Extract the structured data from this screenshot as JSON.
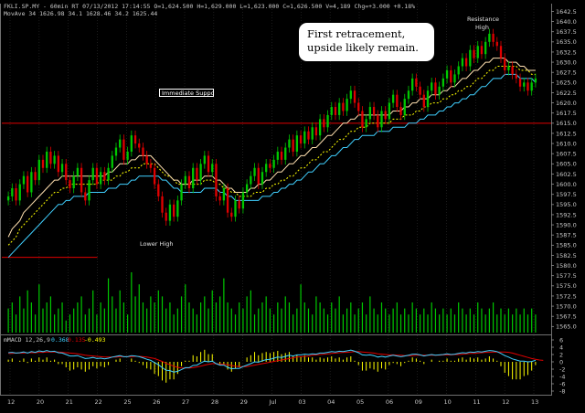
{
  "header": {
    "price_line": "FKLI.SP.MY - 60min RT  07/13/2012  17:14:55   O=1,624.500  H=1,629.000  L=1,623.000  C=1,626.500  V=4,189  Chg=+3.000  +0.18%",
    "ma_line": "MovAve 34   1626.98   34.1   1628.46   34.2   1625.44"
  },
  "macd_label": {
    "name": "mMACD 12,26,9",
    "v1": "0.368",
    "v2": "0.135",
    "v3": "-0.493"
  },
  "annotations": {
    "callout": "First retracement, upside likely remain.",
    "immediate_support": "Immediate Support",
    "lower_high": "Lower High",
    "resistance_line1": "Resistance",
    "resistance_line2": "High"
  },
  "colors": {
    "up_candle": "#00c800",
    "down_candle": "#e00000",
    "ema_fast": "#ffe0b0",
    "ema_mid": "#ffff00",
    "ema_slow": "#40d0ff",
    "support_line": "#e00000",
    "volume": "#00c800",
    "macd_line": "#40d0ff",
    "signal_line": "#e00000",
    "histogram": "#ffff00"
  },
  "chart_data": {
    "type": "candlestick",
    "timeframe": "60min",
    "x_ticks": [
      "12",
      "20",
      "21",
      "22",
      "25",
      "26",
      "27",
      "28",
      "29",
      "Jul",
      "03",
      "04",
      "05",
      "06",
      "09",
      "10",
      "11",
      "12",
      "13"
    ],
    "price_ticks": [
      "1642.5",
      "1640.0",
      "1637.5",
      "1635.0",
      "1632.5",
      "1630.0",
      "1627.5",
      "1625.0",
      "1622.5",
      "1620.0",
      "1617.5",
      "1615.0",
      "1612.5",
      "1610.0",
      "1607.5",
      "1605.0",
      "1602.5",
      "1600.0",
      "1597.5",
      "1595.0",
      "1592.5",
      "1590.0",
      "1587.5",
      "1585.0",
      "1582.5",
      "1580.0",
      "1577.5",
      "1575.0",
      "1572.5",
      "1570.0",
      "1567.5",
      "1565.0"
    ],
    "macd_ticks": [
      "6",
      "4",
      "2",
      "0",
      "-2",
      "-4",
      "-6",
      "-8"
    ],
    "price_ylim": [
      1563.5,
      1643.5
    ],
    "macd_ylim": [
      -8.5,
      6.5
    ],
    "horizontal_lines": [
      {
        "value": 1615.0,
        "from": "start",
        "to": "end"
      },
      {
        "value": 1582.0,
        "from": "start",
        "to": "22"
      }
    ],
    "close": [
      1597,
      1599,
      1596,
      1600,
      1602,
      1598,
      1603,
      1601,
      1606,
      1604,
      1608,
      1605,
      1607,
      1603,
      1605,
      1601,
      1599,
      1602,
      1604,
      1598,
      1596,
      1601,
      1604,
      1600,
      1603,
      1601,
      1604,
      1607,
      1609,
      1611,
      1606,
      1608,
      1612,
      1610,
      1609,
      1607,
      1605,
      1604,
      1600,
      1597,
      1593,
      1591,
      1595,
      1592,
      1596,
      1600,
      1602,
      1599,
      1604,
      1601,
      1605,
      1607,
      1603,
      1605,
      1597,
      1596,
      1599,
      1593,
      1592,
      1596,
      1594,
      1598,
      1600,
      1602,
      1604,
      1600,
      1603,
      1605,
      1604,
      1606,
      1608,
      1606,
      1609,
      1611,
      1608,
      1612,
      1610,
      1613,
      1611,
      1614,
      1612,
      1616,
      1614,
      1617,
      1619,
      1617,
      1620,
      1618,
      1621,
      1623,
      1620,
      1618,
      1614,
      1616,
      1619,
      1617,
      1614,
      1618,
      1616,
      1620,
      1622,
      1619,
      1617,
      1621,
      1623,
      1626,
      1624,
      1622,
      1619,
      1623,
      1625,
      1622,
      1624,
      1626,
      1628,
      1625,
      1627,
      1629,
      1631,
      1629,
      1633,
      1631,
      1634,
      1632,
      1635,
      1637,
      1635,
      1634,
      1631,
      1628,
      1629,
      1627,
      1626,
      1624,
      1625,
      1623,
      1625,
      1626
    ],
    "ema_fast": [
      1587,
      1589,
      1590,
      1591,
      1593,
      1594,
      1595,
      1596,
      1597,
      1598,
      1599,
      1600,
      1601,
      1601,
      1602,
      1602,
      1602,
      1602,
      1602,
      1602,
      1602,
      1602,
      1602,
      1602,
      1602,
      1602,
      1603,
      1603,
      1604,
      1605,
      1605,
      1605,
      1606,
      1606,
      1607,
      1607,
      1607,
      1607,
      1606,
      1605,
      1604,
      1603,
      1602,
      1601,
      1601,
      1600,
      1600,
      1600,
      1601,
      1601,
      1601,
      1602,
      1602,
      1602,
      1601,
      1601,
      1600,
      1599,
      1599,
      1598,
      1598,
      1598,
      1598,
      1599,
      1599,
      1600,
      1600,
      1601,
      1601,
      1602,
      1603,
      1603,
      1604,
      1605,
      1605,
      1606,
      1607,
      1607,
      1608,
      1609,
      1609,
      1610,
      1611,
      1612,
      1612,
      1613,
      1614,
      1615,
      1615,
      1616,
      1616,
      1617,
      1617,
      1617,
      1617,
      1617,
      1617,
      1617,
      1617,
      1617,
      1618,
      1618,
      1618,
      1619,
      1619,
      1620,
      1620,
      1621,
      1621,
      1621,
      1622,
      1622,
      1622,
      1623,
      1623,
      1624,
      1624,
      1625,
      1626,
      1626,
      1627,
      1628,
      1628,
      1629,
      1630,
      1630,
      1631,
      1631,
      1631,
      1631,
      1630,
      1630,
      1630,
      1629,
      1629,
      1628,
      1628,
      1628
    ],
    "ema_mid": [
      1585,
      1586,
      1587,
      1589,
      1590,
      1591,
      1592,
      1593,
      1594,
      1595,
      1596,
      1597,
      1598,
      1598,
      1599,
      1599,
      1600,
      1600,
      1600,
      1600,
      1600,
      1600,
      1600,
      1600,
      1601,
      1601,
      1601,
      1601,
      1602,
      1602,
      1603,
      1603,
      1604,
      1604,
      1604,
      1605,
      1605,
      1605,
      1605,
      1604,
      1603,
      1602,
      1602,
      1601,
      1600,
      1600,
      1600,
      1600,
      1600,
      1600,
      1600,
      1601,
      1601,
      1601,
      1600,
      1600,
      1599,
      1599,
      1598,
      1598,
      1597,
      1597,
      1597,
      1597,
      1598,
      1598,
      1598,
      1599,
      1599,
      1600,
      1600,
      1601,
      1601,
      1602,
      1602,
      1603,
      1604,
      1604,
      1605,
      1606,
      1606,
      1607,
      1608,
      1608,
      1609,
      1610,
      1611,
      1611,
      1612,
      1613,
      1613,
      1614,
      1614,
      1614,
      1615,
      1615,
      1615,
      1615,
      1615,
      1615,
      1616,
      1616,
      1616,
      1617,
      1617,
      1617,
      1618,
      1618,
      1619,
      1619,
      1620,
      1620,
      1620,
      1621,
      1621,
      1622,
      1622,
      1623,
      1623,
      1624,
      1624,
      1625,
      1626,
      1626,
      1627,
      1628,
      1628,
      1629,
      1629,
      1629,
      1629,
      1629,
      1629,
      1628,
      1628,
      1628,
      1627,
      1627
    ],
    "ema_slow": [
      1582,
      1583,
      1584,
      1585,
      1586,
      1587,
      1588,
      1589,
      1590,
      1591,
      1592,
      1593,
      1594,
      1595,
      1595,
      1596,
      1596,
      1597,
      1597,
      1597,
      1597,
      1598,
      1598,
      1598,
      1598,
      1598,
      1599,
      1599,
      1599,
      1600,
      1600,
      1600,
      1601,
      1601,
      1602,
      1602,
      1602,
      1602,
      1602,
      1602,
      1601,
      1601,
      1600,
      1599,
      1599,
      1598,
      1598,
      1598,
      1598,
      1598,
      1598,
      1599,
      1599,
      1599,
      1599,
      1598,
      1598,
      1597,
      1597,
      1596,
      1596,
      1596,
      1596,
      1596,
      1596,
      1596,
      1597,
      1597,
      1597,
      1598,
      1598,
      1599,
      1599,
      1600,
      1600,
      1601,
      1601,
      1602,
      1603,
      1603,
      1604,
      1605,
      1605,
      1606,
      1607,
      1607,
      1608,
      1609,
      1609,
      1610,
      1611,
      1611,
      1612,
      1612,
      1612,
      1612,
      1613,
      1613,
      1613,
      1613,
      1614,
      1614,
      1614,
      1614,
      1615,
      1615,
      1615,
      1616,
      1616,
      1617,
      1617,
      1617,
      1618,
      1618,
      1619,
      1619,
      1620,
      1620,
      1621,
      1621,
      1622,
      1622,
      1623,
      1624,
      1624,
      1625,
      1626,
      1626,
      1626,
      1627,
      1627,
      1627,
      1627,
      1626,
      1626,
      1626,
      1626,
      1625
    ],
    "volume": [
      0.4,
      0.5,
      0.3,
      0.6,
      0.4,
      0.7,
      0.5,
      0.3,
      0.8,
      0.4,
      0.5,
      0.6,
      0.3,
      0.4,
      0.5,
      0.2,
      0.3,
      0.4,
      0.5,
      0.6,
      0.3,
      0.4,
      0.7,
      0.3,
      0.5,
      0.4,
      0.9,
      0.6,
      0.4,
      0.7,
      0.5,
      0.3,
      1.0,
      0.6,
      0.8,
      0.5,
      0.4,
      0.6,
      0.5,
      0.7,
      0.6,
      0.4,
      0.5,
      0.3,
      0.4,
      0.6,
      0.8,
      0.5,
      0.4,
      0.3,
      0.5,
      0.6,
      0.4,
      0.7,
      0.5,
      0.6,
      0.9,
      0.5,
      0.4,
      0.3,
      0.5,
      0.4,
      0.6,
      0.7,
      0.3,
      0.4,
      0.5,
      0.6,
      0.4,
      0.3,
      0.5,
      0.4,
      0.6,
      0.5,
      0.3,
      0.4,
      0.8,
      0.5,
      0.4,
      0.3,
      0.6,
      0.5,
      0.4,
      0.3,
      0.5,
      0.4,
      0.6,
      0.3,
      0.4,
      0.5,
      0.3,
      0.4,
      0.5,
      0.3,
      0.6,
      0.4,
      0.3,
      0.5,
      0.4,
      0.3,
      0.4,
      0.5,
      0.3,
      0.4,
      0.3,
      0.5,
      0.4,
      0.3,
      0.4,
      0.3,
      0.5,
      0.4,
      0.3,
      0.4,
      0.3,
      0.4,
      0.3,
      0.5,
      0.4,
      0.3,
      0.4,
      0.3,
      0.5,
      0.4,
      0.3,
      0.4,
      0.5,
      0.3,
      0.4,
      0.3,
      0.4,
      0.3,
      0.4,
      0.3,
      0.4,
      0.3,
      0.4,
      0.3
    ],
    "macd": [
      2.5,
      2.6,
      2.4,
      2.5,
      2.7,
      2.4,
      2.8,
      2.6,
      3.0,
      2.8,
      3.1,
      2.8,
      2.9,
      2.5,
      2.4,
      2.0,
      1.6,
      1.6,
      1.7,
      1.3,
      0.9,
      1.0,
      1.2,
      0.9,
      1.0,
      0.8,
      1.0,
      1.3,
      1.5,
      1.7,
      1.4,
      1.4,
      1.7,
      1.6,
      1.4,
      1.1,
      0.7,
      0.4,
      -0.2,
      -0.8,
      -1.6,
      -2.3,
      -2.4,
      -2.8,
      -2.6,
      -2.1,
      -1.6,
      -1.6,
      -1.0,
      -0.9,
      -0.3,
      0.2,
      0.0,
      0.2,
      -0.5,
      -0.9,
      -0.9,
      -1.5,
      -1.9,
      -1.8,
      -1.8,
      -1.3,
      -0.9,
      -0.5,
      0.0,
      -0.1,
      0.3,
      0.6,
      0.7,
      1.0,
      1.3,
      1.2,
      1.5,
      1.8,
      1.6,
      1.9,
      1.9,
      2.1,
      2.0,
      2.2,
      2.1,
      2.4,
      2.4,
      2.6,
      2.8,
      2.7,
      2.9,
      2.8,
      3.0,
      3.2,
      2.9,
      2.5,
      1.9,
      1.8,
      1.9,
      1.7,
      1.3,
      1.5,
      1.3,
      1.6,
      1.8,
      1.6,
      1.4,
      1.6,
      1.8,
      2.1,
      2.1,
      1.9,
      1.6,
      1.8,
      2.0,
      1.8,
      1.9,
      2.0,
      2.2,
      2.0,
      2.1,
      2.3,
      2.5,
      2.4,
      2.7,
      2.6,
      2.8,
      2.7,
      2.9,
      3.1,
      3.0,
      2.8,
      2.3,
      1.7,
      1.3,
      0.8,
      0.5,
      0.2,
      0.2,
      0.0,
      0.1,
      0.4
    ],
    "signal": [
      2.3,
      2.3,
      2.4,
      2.4,
      2.4,
      2.5,
      2.5,
      2.5,
      2.6,
      2.6,
      2.7,
      2.7,
      2.7,
      2.7,
      2.6,
      2.5,
      2.4,
      2.3,
      2.2,
      2.0,
      1.8,
      1.7,
      1.6,
      1.5,
      1.4,
      1.3,
      1.3,
      1.3,
      1.3,
      1.4,
      1.4,
      1.4,
      1.4,
      1.5,
      1.5,
      1.4,
      1.3,
      1.1,
      0.9,
      0.5,
      0.1,
      -0.4,
      -0.8,
      -1.2,
      -1.5,
      -1.7,
      -1.7,
      -1.7,
      -1.6,
      -1.4,
      -1.2,
      -0.9,
      -0.7,
      -0.5,
      -0.5,
      -0.6,
      -0.7,
      -0.8,
      -1.0,
      -1.2,
      -1.3,
      -1.3,
      -1.3,
      -1.1,
      -0.9,
      -0.7,
      -0.5,
      -0.3,
      -0.1,
      0.1,
      0.3,
      0.5,
      0.7,
      0.9,
      1.1,
      1.3,
      1.4,
      1.5,
      1.6,
      1.8,
      1.9,
      2.0,
      2.1,
      2.2,
      2.3,
      2.4,
      2.5,
      2.6,
      2.6,
      2.7,
      2.8,
      2.8,
      2.7,
      2.6,
      2.5,
      2.4,
      2.2,
      2.1,
      2.0,
      1.9,
      1.9,
      1.8,
      1.8,
      1.7,
      1.7,
      1.7,
      1.8,
      1.8,
      1.8,
      1.8,
      1.8,
      1.8,
      1.8,
      1.9,
      1.9,
      1.9,
      2.0,
      2.0,
      2.1,
      2.2,
      2.3,
      2.3,
      2.4,
      2.5,
      2.6,
      2.6,
      2.7,
      2.7,
      2.7,
      2.7,
      2.6,
      2.4,
      2.1,
      1.8,
      1.5,
      1.2,
      0.9,
      0.7,
      0.5,
      0.4
    ]
  }
}
